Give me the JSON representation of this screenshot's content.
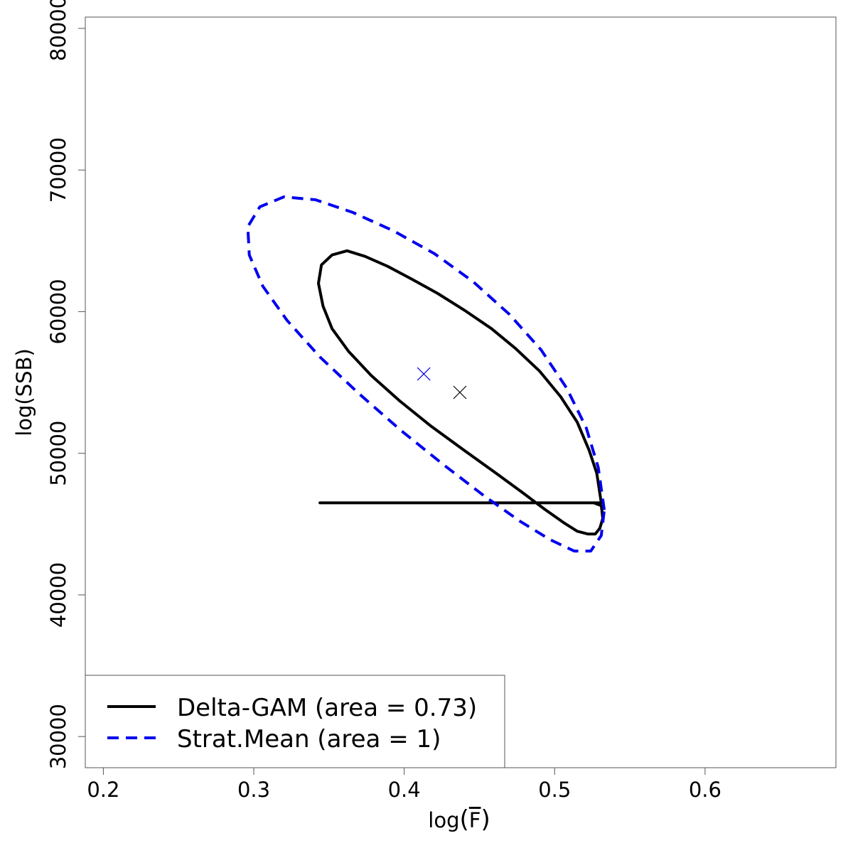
{
  "chart_data": {
    "type": "line",
    "xlabel": "log(F)",
    "xlabel_parts": {
      "prefix": "log",
      "symbol": "F"
    },
    "ylabel": "log(SSB)",
    "xlim": [
      0.188,
      0.687
    ],
    "ylim": [
      27800,
      80800
    ],
    "x_ticks": [
      0.2,
      0.3,
      0.4,
      0.5,
      0.6
    ],
    "x_tick_labels": [
      "0.2",
      "0.3",
      "0.4",
      "0.5",
      "0.6"
    ],
    "y_ticks": [
      30000,
      40000,
      50000,
      60000,
      70000,
      80000
    ],
    "y_tick_labels": [
      "30000",
      "40000",
      "50000",
      "60000",
      "70000",
      "80000"
    ],
    "grid": false,
    "legend_position": "bottom-left",
    "series": [
      {
        "name": "Delta-GAM (area = 0.73)",
        "color": "#000000",
        "line_style": "solid",
        "center": {
          "x": 0.437,
          "y": 54300
        },
        "x": [
          0.531,
          0.528,
          0.523,
          0.515,
          0.504,
          0.49,
          0.474,
          0.458,
          0.44,
          0.422,
          0.405,
          0.389,
          0.374,
          0.362,
          0.352,
          0.345,
          0.343,
          0.346,
          0.352,
          0.363,
          0.378,
          0.397,
          0.418,
          0.44,
          0.461,
          0.479,
          0.494,
          0.506,
          0.515,
          0.522,
          0.527,
          0.53,
          0.532,
          0.531,
          0.526,
          0.515,
          0.5,
          0.48,
          0.458,
          0.434,
          0.411,
          0.39,
          0.372,
          0.356,
          0.347,
          0.344,
          0.348,
          0.36,
          0.379,
          0.403
        ],
        "y": [
          46500,
          48600,
          50200,
          52200,
          54000,
          55800,
          57400,
          58800,
          60100,
          61300,
          62300,
          63200,
          63900,
          64300,
          64000,
          63300,
          62000,
          60400,
          58800,
          57200,
          55500,
          53700,
          51900,
          50200,
          48600,
          47200,
          46000,
          45100,
          44500,
          44300,
          44300,
          44700,
          45400,
          46300,
          46500,
          46500,
          46500,
          46500,
          46500,
          46500,
          46500,
          46500,
          46500,
          46500,
          46500,
          46500,
          46500,
          46500,
          46500,
          46500
        ]
      },
      {
        "name": "Strat.Mean (area = 1)",
        "color": "#0000ee",
        "line_style": "dashed",
        "center": {
          "x": 0.413,
          "y": 55600
        },
        "x": [
          0.533,
          0.529,
          0.521,
          0.508,
          0.491,
          0.47,
          0.446,
          0.42,
          0.393,
          0.366,
          0.341,
          0.32,
          0.304,
          0.296,
          0.297,
          0.306,
          0.322,
          0.344,
          0.37,
          0.398,
          0.426,
          0.453,
          0.477,
          0.497,
          0.513,
          0.524,
          0.531,
          0.533
        ],
        "y": [
          46000,
          49000,
          51800,
          54600,
          57300,
          59800,
          62100,
          64100,
          65700,
          67000,
          67900,
          68100,
          67400,
          66000,
          64000,
          61800,
          59400,
          56800,
          54200,
          51600,
          49200,
          47000,
          45200,
          43900,
          43100,
          43100,
          44200,
          46000
        ]
      }
    ]
  },
  "legend": {
    "entries": [
      {
        "label": "Delta-GAM (area = 0.73)",
        "color": "#000000",
        "line_style": "solid"
      },
      {
        "label": "Strat.Mean (area = 1)",
        "color": "#0000ee",
        "line_style": "dashed"
      }
    ]
  }
}
